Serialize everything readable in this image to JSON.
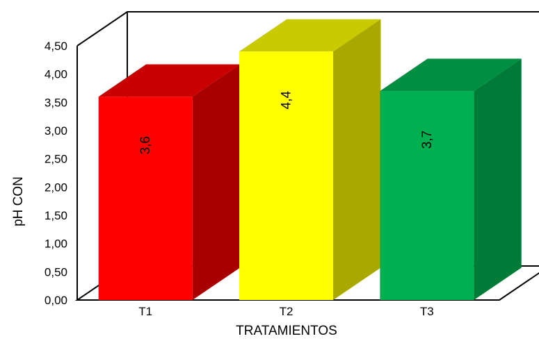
{
  "chart_data": {
    "type": "bar",
    "categories": [
      "T1",
      "T2",
      "T3"
    ],
    "values": [
      3.6,
      4.4,
      3.7
    ],
    "data_labels": [
      "3,6",
      "4,4",
      "3,7"
    ],
    "xlabel": "TRATAMIENTOS",
    "ylabel": "pH CON",
    "ylim": [
      0,
      4.5
    ],
    "yticks": [
      0,
      0.5,
      1,
      1.5,
      2,
      2.5,
      3,
      3.5,
      4,
      4.5
    ],
    "ytick_labels": [
      "0,00",
      "0,50",
      "1,00",
      "1,50",
      "2,00",
      "2,50",
      "3,00",
      "3,50",
      "4,00",
      "4,50"
    ],
    "grid": false,
    "legend": "none",
    "style": "3d-column",
    "bar_colors": [
      {
        "front": "#ff0000",
        "side": "#a80000",
        "top": "#c80000"
      },
      {
        "front": "#ffff00",
        "side": "#a8a800",
        "top": "#caca00"
      },
      {
        "front": "#00b050",
        "side": "#007a37",
        "top": "#008f42"
      }
    ]
  }
}
